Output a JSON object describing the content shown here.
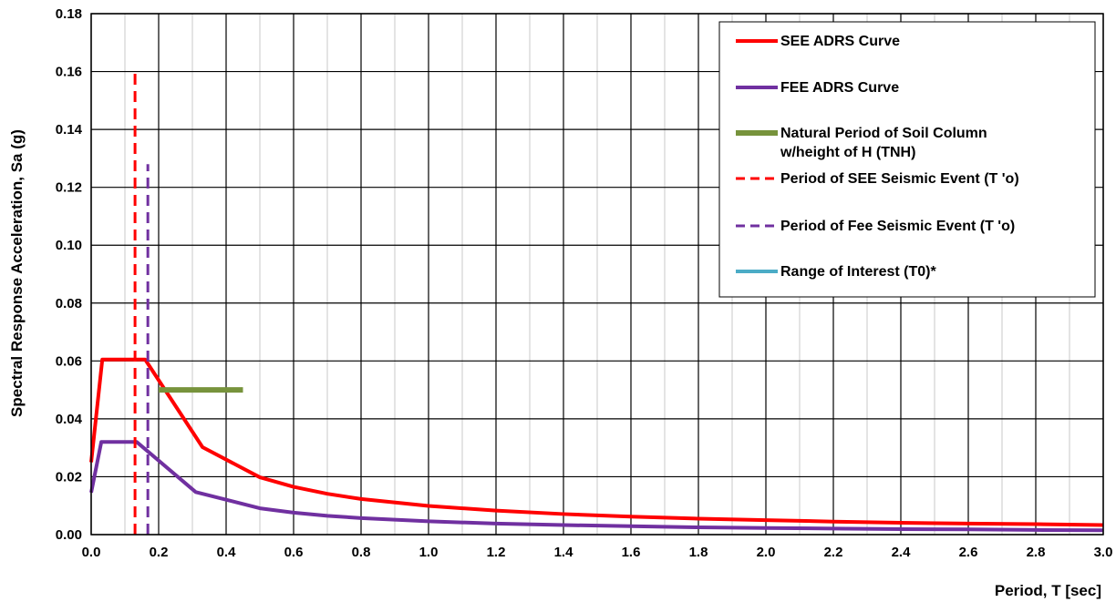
{
  "chart_data": {
    "type": "line",
    "xlabel": "Period, T [sec]",
    "ylabel": "Spectral Response Acceleration, Sa (g)",
    "xlim": [
      0,
      3.0
    ],
    "ylim": [
      0,
      0.18
    ],
    "x_ticks": [
      "0.0",
      "0.2",
      "0.4",
      "0.6",
      "0.8",
      "1.0",
      "1.2",
      "1.4",
      "1.6",
      "1.8",
      "2.0",
      "2.2",
      "2.4",
      "2.6",
      "2.8",
      "3.0"
    ],
    "y_ticks": [
      "0.00",
      "0.02",
      "0.04",
      "0.06",
      "0.08",
      "0.10",
      "0.12",
      "0.14",
      "0.16",
      "0.18"
    ],
    "grid": {
      "major": true,
      "minor_x": true
    },
    "legend_position": "top-right",
    "series": [
      {
        "name": "SEE ADRS Curve",
        "color": "#ff0000",
        "style": "solid",
        "points": [
          [
            0.0,
            0.025
          ],
          [
            0.033,
            0.0605
          ],
          [
            0.16,
            0.0605
          ],
          [
            0.33,
            0.0302
          ],
          [
            0.5,
            0.0198
          ],
          [
            0.6,
            0.0165
          ],
          [
            0.7,
            0.0141
          ],
          [
            0.8,
            0.0123
          ],
          [
            1.0,
            0.0099
          ],
          [
            1.2,
            0.0083
          ],
          [
            1.4,
            0.0071
          ],
          [
            1.6,
            0.0062
          ],
          [
            1.8,
            0.0055
          ],
          [
            2.0,
            0.005
          ],
          [
            2.2,
            0.0045
          ],
          [
            2.4,
            0.0041
          ],
          [
            2.6,
            0.0038
          ],
          [
            2.8,
            0.0036
          ],
          [
            3.0,
            0.0033
          ]
        ]
      },
      {
        "name": "FEE ADRS Curve",
        "color": "#7030a0",
        "style": "solid",
        "points": [
          [
            0.0,
            0.0145
          ],
          [
            0.03,
            0.032
          ],
          [
            0.135,
            0.032
          ],
          [
            0.31,
            0.0147
          ],
          [
            0.5,
            0.0091
          ],
          [
            0.6,
            0.0076
          ],
          [
            0.7,
            0.0065
          ],
          [
            0.8,
            0.0057
          ],
          [
            1.0,
            0.0046
          ],
          [
            1.2,
            0.0038
          ],
          [
            1.4,
            0.0033
          ],
          [
            1.6,
            0.0029
          ],
          [
            1.8,
            0.0025
          ],
          [
            2.0,
            0.0023
          ],
          [
            2.2,
            0.0021
          ],
          [
            2.4,
            0.0019
          ],
          [
            2.6,
            0.0018
          ],
          [
            2.8,
            0.0016
          ],
          [
            3.0,
            0.0015
          ]
        ]
      },
      {
        "name": "Natural Period of Soil Column w/height of H (TNH)",
        "label_lines": [
          "Natural Period of Soil Column",
          "w/height of H (TNH)"
        ],
        "color": "#77933c",
        "style": "solid-thick",
        "points": [
          [
            0.2,
            0.05
          ],
          [
            0.45,
            0.05
          ]
        ]
      },
      {
        "name": "Period of SEE Seismic Event (T 'o)",
        "color": "#ff0000",
        "style": "dashed",
        "points": [
          [
            0.13,
            0.0
          ],
          [
            0.13,
            0.16
          ]
        ]
      },
      {
        "name": "Period of Fee Seismic Event (T 'o)",
        "color": "#7030a0",
        "style": "dashed",
        "points": [
          [
            0.168,
            0.0
          ],
          [
            0.168,
            0.128
          ]
        ]
      },
      {
        "name": "Range of Interest (T0)*",
        "color": "#4bacc6",
        "style": "solid",
        "points": []
      }
    ]
  }
}
